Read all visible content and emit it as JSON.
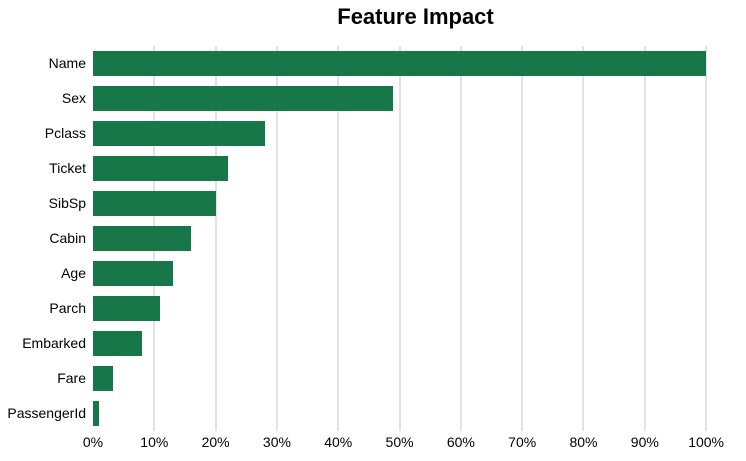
{
  "chart_data": {
    "type": "bar",
    "orientation": "horizontal",
    "title": "Feature Impact",
    "xlabel": "",
    "ylabel": "",
    "categories": [
      "Name",
      "Sex",
      "Pclass",
      "Ticket",
      "SibSp",
      "Cabin",
      "Age",
      "Parch",
      "Embarked",
      "Fare",
      "PassengerId"
    ],
    "values": [
      100,
      49,
      28,
      22,
      20,
      16,
      13,
      11,
      8,
      3.3,
      1
    ],
    "value_unit": "%",
    "xlim": [
      0,
      105.2
    ],
    "x_ticks": [
      0,
      10,
      20,
      30,
      40,
      50,
      60,
      70,
      80,
      90,
      100
    ],
    "x_tick_labels": [
      "0%",
      "10%",
      "20%",
      "30%",
      "40%",
      "50%",
      "60%",
      "70%",
      "80%",
      "90%",
      "100%"
    ],
    "grid": "vertical",
    "legend": "none",
    "colors": {
      "bar": "#177749",
      "gridline": "#e2e2e2",
      "text": "#000000",
      "background": "#ffffff"
    }
  }
}
